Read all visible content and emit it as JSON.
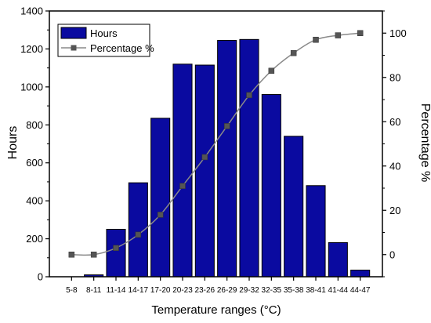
{
  "chart_data": {
    "type": "bar",
    "xlabel": "Temperature ranges (°C)",
    "ylabel_left": "Hours",
    "ylabel_right": "Percentage %",
    "ylim_left": [
      0,
      1400
    ],
    "yticks_left": [
      0,
      200,
      400,
      600,
      800,
      1000,
      1200,
      1400
    ],
    "ylim_right": [
      -10,
      110
    ],
    "yticks_right": [
      0,
      20,
      40,
      60,
      80,
      100
    ],
    "grid": false,
    "legend_position": "top-left",
    "categories": [
      "5-8",
      "8-11",
      "11-14",
      "14-17",
      "17-20",
      "20-23",
      "23-26",
      "26-29",
      "29-32",
      "32-35",
      "35-38",
      "38-41",
      "41-44",
      "44-47"
    ],
    "series": [
      {
        "name": "Hours",
        "type": "bar",
        "axis": "left",
        "color": "#0a0aa0",
        "values": [
          0,
          10,
          250,
          495,
          835,
          1120,
          1115,
          1245,
          1250,
          960,
          740,
          480,
          180,
          35
        ]
      },
      {
        "name": "Percentage %",
        "type": "line",
        "axis": "right",
        "color": "#555555",
        "marker": "square",
        "values": [
          0,
          0,
          3,
          9,
          18,
          31,
          44,
          58,
          72,
          83,
          91,
          97,
          99,
          100
        ]
      }
    ]
  }
}
